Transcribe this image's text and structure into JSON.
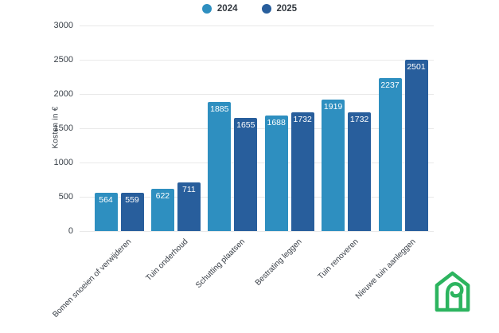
{
  "chart_data": {
    "type": "bar",
    "categories": [
      "Bomen snoeien of verwijderen",
      "Tuin onderhoud",
      "Schutting plaatsen",
      "Bestrating leggen",
      "Tuin renoveren",
      "Nieuwe tuin aanleggen"
    ],
    "series": [
      {
        "name": "2024",
        "color": "#2E8FC0",
        "values": [
          564,
          622,
          1885,
          1688,
          1919,
          2237
        ]
      },
      {
        "name": "2025",
        "color": "#285E9C",
        "values": [
          559,
          711,
          1655,
          1732,
          1732,
          2501
        ]
      }
    ],
    "xlabel": "",
    "ylabel": "Kosten in €",
    "ylim": [
      0,
      3000
    ],
    "y_ticks": [
      0,
      500,
      1000,
      1500,
      2000,
      2500,
      3000
    ],
    "grid": true,
    "legend_position": "top-center",
    "value_labels": "inside-top",
    "value_label_color": "#ffffff"
  },
  "colors": {
    "grid": "#e9e9e9",
    "axis_text": "#3a4149",
    "logo_green": "#2DB45F"
  },
  "logo": {
    "name": "green-house-logo"
  }
}
